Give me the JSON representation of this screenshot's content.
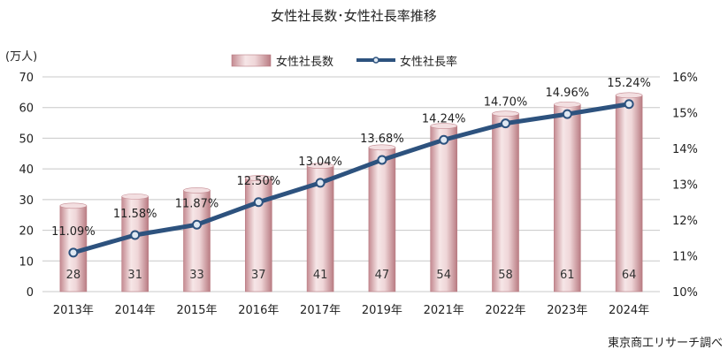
{
  "chart_data": {
    "type": "bar+line",
    "title": "女性社長数･女性社長率推移",
    "categories": [
      "2013年",
      "2014年",
      "2015年",
      "2016年",
      "2017年",
      "2019年",
      "2021年",
      "2022年",
      "2023年",
      "2024年"
    ],
    "series": [
      {
        "name": "女性社長数",
        "type": "bar",
        "axis": "left",
        "values": [
          28,
          31,
          33,
          37,
          41,
          47,
          54,
          58,
          61,
          64
        ],
        "labels": [
          "28",
          "31",
          "33",
          "37",
          "41",
          "47",
          "54",
          "58",
          "61",
          "64"
        ],
        "color": "#d9a9ad"
      },
      {
        "name": "女性社長率",
        "type": "line",
        "axis": "right",
        "values": [
          11.09,
          11.58,
          11.87,
          12.5,
          13.04,
          13.68,
          14.24,
          14.7,
          14.96,
          15.24
        ],
        "labels": [
          "11.09%",
          "11.58%",
          "11.87%",
          "12.50%",
          "13.04%",
          "13.68%",
          "14.24%",
          "14.70%",
          "14.96%",
          "15.24%"
        ],
        "color": "#2d527e"
      }
    ],
    "y_left": {
      "unit_label": "(万人)",
      "range": [
        0,
        70
      ],
      "ticks": [
        "0",
        "10",
        "20",
        "30",
        "40",
        "50",
        "60",
        "70"
      ]
    },
    "y_right": {
      "range": [
        10,
        16
      ],
      "ticks": [
        "10%",
        "11%",
        "12%",
        "13%",
        "14%",
        "15%",
        "16%"
      ]
    },
    "grid": true,
    "legend": "top-center",
    "source": "東京商工リサーチ調べ"
  }
}
